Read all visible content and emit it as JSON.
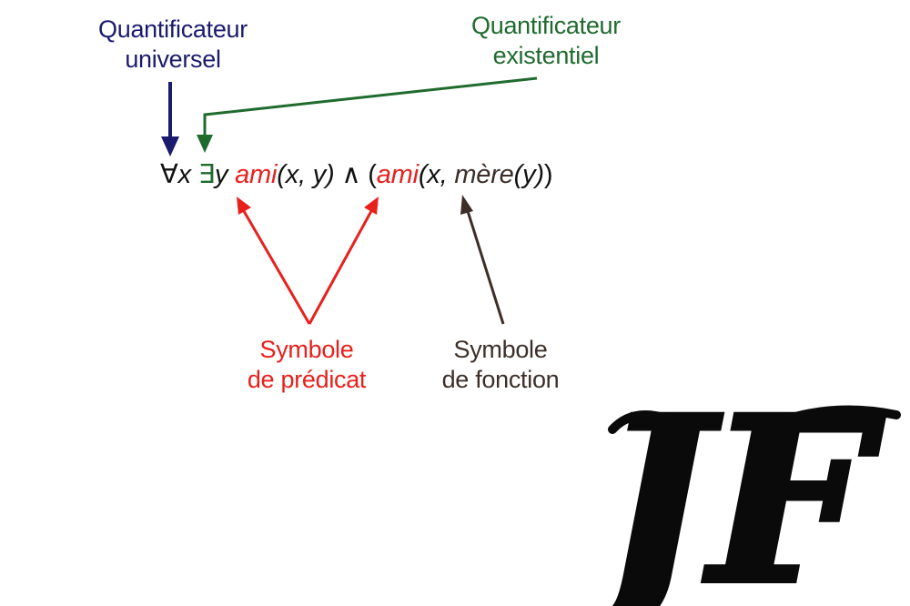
{
  "labels": {
    "universal": [
      "Quantificateur",
      "universel"
    ],
    "existential": [
      "Quantificateur",
      "existentiel"
    ],
    "predicate": [
      "Symbole",
      "de prédicat"
    ],
    "function": [
      "Symbole",
      "de fonction"
    ]
  },
  "formula": {
    "forall": "∀",
    "var_x": "x",
    "exists": "∃",
    "var_y": "y",
    "pred1": "ami",
    "args1": "(x, y)",
    "and": "∧",
    "open": "(",
    "pred2": "ami",
    "args2_start": "(x, ",
    "func": "mère",
    "func_args": "(y)",
    "close": ")"
  },
  "logo": {
    "text": "JF"
  },
  "colors": {
    "universal": "#1b1b6e",
    "existential": "#1f6b2e",
    "predicate": "#e8201c",
    "function": "#3d2f28"
  }
}
